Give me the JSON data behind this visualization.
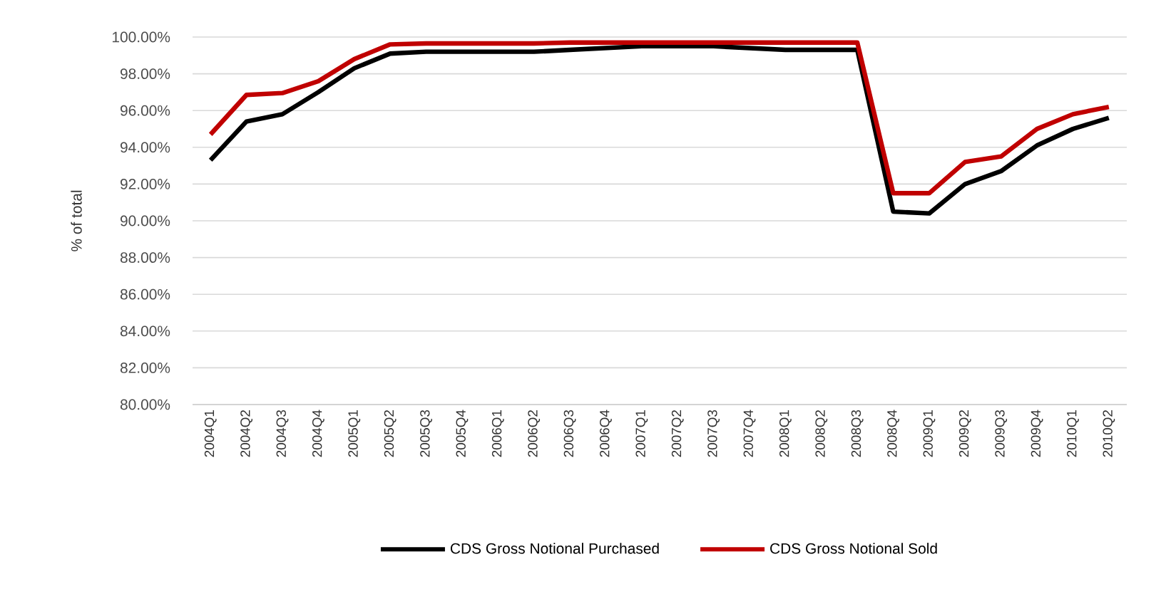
{
  "chart_data": {
    "type": "line",
    "ylabel": "% of total",
    "categories": [
      "2004Q1",
      "2004Q2",
      "2004Q3",
      "2004Q4",
      "2005Q1",
      "2005Q2",
      "2005Q3",
      "2005Q4",
      "2006Q1",
      "2006Q2",
      "2006Q3",
      "2006Q4",
      "2007Q1",
      "2007Q2",
      "2007Q3",
      "2007Q4",
      "2008Q1",
      "2008Q2",
      "2008Q3",
      "2008Q4",
      "2009Q1",
      "2009Q2",
      "2009Q3",
      "2009Q4",
      "2010Q1",
      "2010Q2"
    ],
    "series": [
      {
        "name": "CDS Gross Notional Purchased",
        "color": "#000000",
        "values": [
          93.3,
          95.4,
          95.8,
          97.0,
          98.3,
          99.1,
          99.2,
          99.2,
          99.2,
          99.2,
          99.3,
          99.4,
          99.5,
          99.5,
          99.5,
          99.4,
          99.3,
          99.3,
          99.3,
          90.5,
          90.4,
          92.0,
          92.7,
          94.1,
          95.0,
          95.6
        ]
      },
      {
        "name": "CDS Gross Notional Sold",
        "color": "#c00000",
        "values": [
          94.7,
          96.85,
          96.95,
          97.6,
          98.8,
          99.6,
          99.65,
          99.65,
          99.65,
          99.65,
          99.7,
          99.7,
          99.7,
          99.7,
          99.7,
          99.7,
          99.7,
          99.7,
          99.7,
          91.5,
          91.5,
          93.2,
          93.5,
          95.0,
          95.8,
          96.2
        ]
      }
    ],
    "ylim": [
      80,
      100
    ],
    "yticks": [
      {
        "value": 80,
        "label": "80.00%"
      },
      {
        "value": 82,
        "label": "82.00%"
      },
      {
        "value": 84,
        "label": "84.00%"
      },
      {
        "value": 86,
        "label": "86.00%"
      },
      {
        "value": 88,
        "label": "88.00%"
      },
      {
        "value": 90,
        "label": "90.00%"
      },
      {
        "value": 92,
        "label": "92.00%"
      },
      {
        "value": 94,
        "label": "94.00%"
      },
      {
        "value": 96,
        "label": "96.00%"
      },
      {
        "value": 98,
        "label": "98.00%"
      },
      {
        "value": 100,
        "label": "100.00%"
      }
    ],
    "grid": "y",
    "legend": "bottom",
    "marker": "none",
    "line_style": "solid"
  }
}
